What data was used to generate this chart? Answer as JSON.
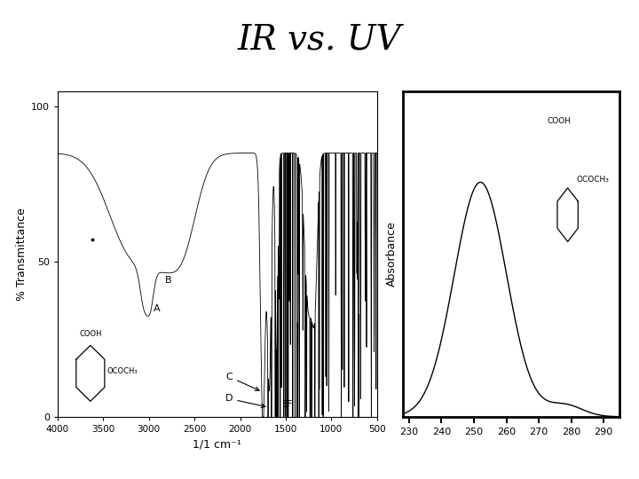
{
  "title": "IR vs. UV",
  "title_fontsize": 28,
  "title_fontweight": "normal",
  "background_color": "#ffffff",
  "ir": {
    "ylabel": "% Transmittance",
    "xlabel": "1/1 cm⁻¹",
    "yticks": [
      0,
      50,
      100
    ],
    "xticks": [
      4000,
      3500,
      3000,
      2500,
      2000,
      1500,
      1000,
      500
    ],
    "xlim": [
      4000,
      500
    ],
    "ylim": [
      0,
      105
    ]
  },
  "uv": {
    "ylabel": "Absorbance",
    "xticks": [
      230,
      240,
      250,
      260,
      270,
      280,
      290
    ],
    "xlim": [
      228,
      295
    ],
    "ylim": [
      0,
      1
    ]
  }
}
